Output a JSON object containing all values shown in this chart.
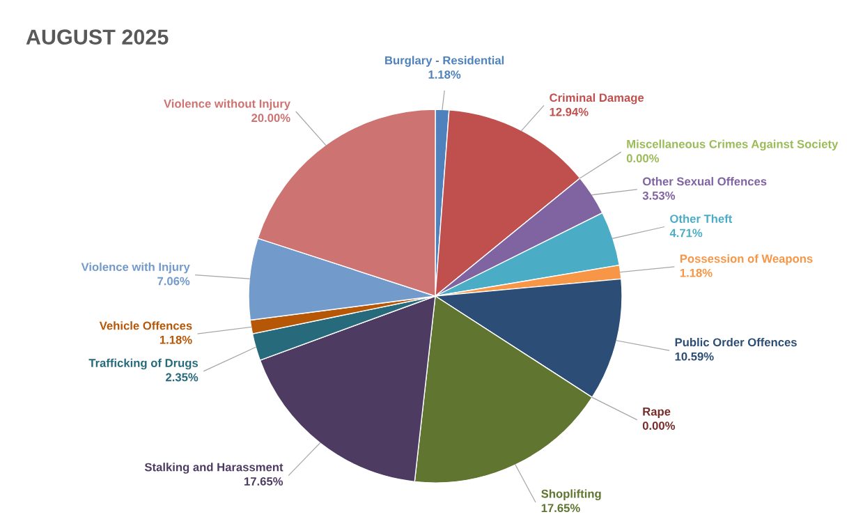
{
  "chart_data": {
    "type": "pie",
    "title": "AUGUST 2025",
    "categories": [
      "Burglary - Residential",
      "Criminal Damage",
      "Miscellaneous Crimes Against Society",
      "Other Sexual Offences",
      "Other Theft",
      "Possession of Weapons",
      "Public Order Offences",
      "Rape",
      "Shoplifting",
      "Stalking and Harassment",
      "Trafficking of Drugs",
      "Vehicle Offences",
      "Violence with Injury",
      "Violence without Injury"
    ],
    "values": [
      1.18,
      12.94,
      0.0,
      3.53,
      4.71,
      1.18,
      10.59,
      0.0,
      17.65,
      17.65,
      2.35,
      1.18,
      7.06,
      20.0
    ],
    "value_labels": [
      "1.18%",
      "12.94%",
      "0.00%",
      "3.53%",
      "4.71%",
      "1.18%",
      "10.59%",
      "0.00%",
      "17.65%",
      "17.65%",
      "2.35%",
      "1.18%",
      "7.06%",
      "20.00%"
    ],
    "colors": [
      "#4f81bd",
      "#c0504d",
      "#9bbb59",
      "#8064a2",
      "#4bacc6",
      "#f79646",
      "#2c4d75",
      "#772c2a",
      "#5f7530",
      "#4d3b62",
      "#276a7c",
      "#b65708",
      "#729aca",
      "#cd7371"
    ]
  }
}
